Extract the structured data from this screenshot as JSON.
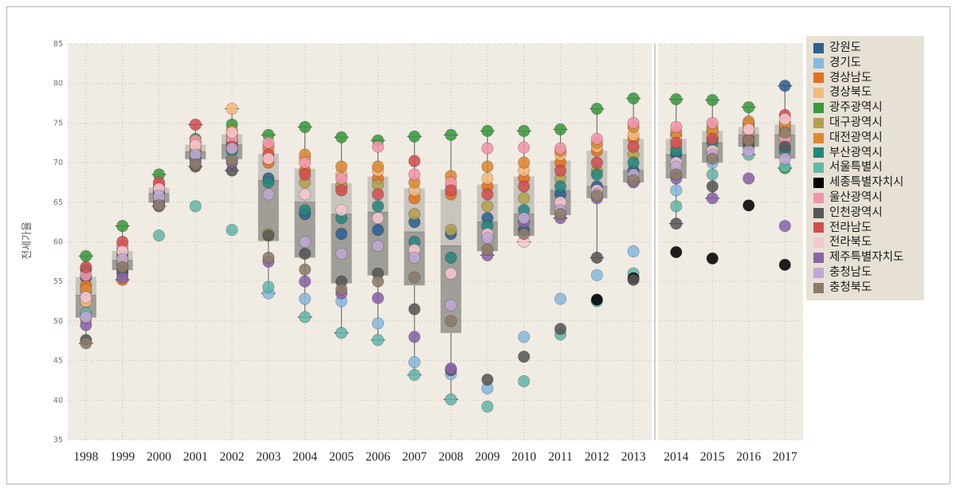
{
  "chart_data": {
    "type": "boxplot-scatter",
    "title": "",
    "ylabel": "전세가율",
    "ylim": [
      35,
      85
    ],
    "ytick_step": 5,
    "yticks": [
      35,
      40,
      45,
      50,
      55,
      60,
      65,
      70,
      75,
      80,
      85
    ],
    "years": [
      1998,
      1999,
      2000,
      2001,
      2002,
      2003,
      2004,
      2005,
      2006,
      2007,
      2008,
      2009,
      2010,
      2011,
      2012,
      2013,
      2014,
      2015,
      2016,
      2017
    ],
    "panel_split_after": 2013,
    "grid": true,
    "legend_position": "right",
    "colors": {
      "plot_background": "#f0ebe3",
      "legend_background": "#e7e1d5",
      "box_fill": "#a8a5a0",
      "box_fill_dark": "#807d79",
      "whisker": "#5f5f5f",
      "vgrid": "#a9bdd6",
      "hgrid": "#c6c1b6"
    },
    "regions": [
      {
        "name": "강원도",
        "color": "#2f5f8f",
        "values": [
          55.5,
          58.5,
          66.5,
          71.5,
          72.5,
          68.0,
          63.5,
          61.0,
          61.5,
          62.5,
          61.0,
          63.0,
          61.5,
          66.0,
          67.0,
          69.0,
          71.0,
          73.0,
          75.0,
          79.7
        ]
      },
      {
        "name": "경기도",
        "color": "#86b8dd",
        "values": [
          53.5,
          57.0,
          65.0,
          70.5,
          70.5,
          53.5,
          52.8,
          52.5,
          49.7,
          44.8,
          43.3,
          41.5,
          48.0,
          52.8,
          55.8,
          58.8,
          66.5,
          70.0,
          74.0,
          74.5
        ]
      },
      {
        "name": "경상남도",
        "color": "#e2711f",
        "values": [
          54.5,
          55.2,
          66.0,
          72.0,
          73.5,
          70.0,
          69.0,
          67.0,
          68.0,
          65.5,
          66.0,
          67.0,
          68.0,
          70.0,
          71.5,
          73.0,
          73.5,
          74.0,
          74.5,
          74.0
        ]
      },
      {
        "name": "경상북도",
        "color": "#f4b97d",
        "values": [
          52.5,
          56.5,
          65.5,
          71.8,
          76.8,
          71.5,
          70.5,
          68.5,
          69.0,
          66.5,
          67.0,
          68.0,
          69.0,
          71.0,
          72.0,
          73.5,
          73.0,
          73.5,
          73.8,
          73.5
        ]
      },
      {
        "name": "광주광역시",
        "color": "#3a9a3d",
        "values": [
          58.2,
          62.0,
          68.5,
          73.0,
          74.8,
          73.5,
          74.5,
          73.2,
          72.8,
          73.3,
          73.5,
          74.0,
          74.0,
          74.2,
          76.8,
          78.1,
          78.0,
          77.9,
          77.0,
          69.3
        ]
      },
      {
        "name": "대구광역시",
        "color": "#b3a04f",
        "values": [
          50.2,
          57.5,
          66.8,
          71.2,
          72.8,
          61.0,
          67.5,
          67.2,
          67.2,
          63.5,
          61.5,
          64.5,
          65.5,
          68.0,
          69.0,
          71.0,
          72.0,
          74.5,
          74.8,
          75.0
        ]
      },
      {
        "name": "대전광역시",
        "color": "#dd8833",
        "values": [
          54.0,
          58.0,
          67.0,
          72.5,
          74.0,
          72.0,
          71.0,
          69.5,
          69.5,
          67.5,
          68.3,
          69.5,
          70.0,
          71.5,
          72.5,
          74.5,
          73.8,
          74.0,
          75.2,
          74.8
        ]
      },
      {
        "name": "부산광역시",
        "color": "#27857c",
        "values": [
          56.5,
          59.0,
          66.2,
          70.8,
          71.5,
          67.5,
          64.0,
          63.0,
          64.5,
          60.0,
          58.0,
          62.0,
          64.0,
          67.0,
          68.5,
          70.0,
          71.5,
          72.5,
          72.0,
          71.5
        ]
      },
      {
        "name": "서울특별시",
        "color": "#66b5aa",
        "values": [
          51.0,
          56.0,
          60.8,
          64.5,
          61.5,
          54.3,
          50.5,
          48.5,
          47.6,
          43.2,
          40.1,
          39.2,
          42.4,
          48.3,
          52.5,
          56.0,
          64.5,
          68.5,
          71.0,
          69.5
        ]
      },
      {
        "name": "세종특별자치시",
        "color": "#000000",
        "values": [
          null,
          null,
          null,
          null,
          null,
          null,
          null,
          null,
          null,
          null,
          null,
          null,
          null,
          null,
          52.7,
          55.4,
          58.7,
          57.9,
          64.6,
          57.1
        ]
      },
      {
        "name": "울산광역시",
        "color": "#f195ab",
        "values": [
          55.8,
          59.5,
          67.2,
          72.8,
          73.0,
          72.5,
          70.0,
          68.0,
          72.0,
          68.5,
          67.5,
          71.8,
          71.9,
          71.8,
          73.0,
          75.0,
          74.5,
          75.0,
          73.5,
          73.0
        ]
      },
      {
        "name": "인천광역시",
        "color": "#575757",
        "values": [
          47.6,
          56.2,
          64.5,
          69.5,
          69.0,
          60.8,
          58.5,
          55.0,
          56.0,
          51.5,
          43.8,
          42.6,
          45.5,
          49.0,
          58.0,
          55.2,
          62.3,
          67.0,
          72.5,
          72.0
        ]
      },
      {
        "name": "전라남도",
        "color": "#d05050",
        "values": [
          56.8,
          60.0,
          67.5,
          74.8,
          72.0,
          71.0,
          68.5,
          66.5,
          66.0,
          70.2,
          66.5,
          66.0,
          67.0,
          69.0,
          70.0,
          72.0,
          72.5,
          73.0,
          73.0,
          76.0
        ]
      },
      {
        "name": "전라북도",
        "color": "#f5c6ce",
        "values": [
          53.0,
          58.8,
          66.7,
          72.2,
          73.8,
          70.5,
          66.0,
          64.0,
          63.0,
          59.0,
          56.0,
          61.0,
          60.0,
          65.0,
          66.5,
          68.0,
          70.0,
          71.5,
          74.2,
          75.5
        ]
      },
      {
        "name": "제주특별자치도",
        "color": "#8a63a8",
        "values": [
          49.5,
          55.5,
          64.8,
          70.2,
          70.0,
          57.5,
          55.0,
          53.5,
          52.9,
          48.0,
          44.0,
          58.3,
          62.5,
          63.0,
          65.5,
          67.5,
          68.0,
          65.5,
          68.0,
          62.0
        ]
      },
      {
        "name": "충청남도",
        "color": "#bfa8d3",
        "values": [
          50.5,
          57.8,
          65.8,
          71.0,
          71.8,
          66.0,
          60.0,
          58.5,
          59.5,
          58.0,
          52.0,
          60.5,
          63.0,
          64.0,
          66.0,
          68.5,
          69.5,
          71.0,
          71.5,
          70.5
        ]
      },
      {
        "name": "충청북도",
        "color": "#8c7b68",
        "values": [
          47.2,
          56.8,
          64.6,
          69.8,
          70.3,
          58.0,
          56.5,
          54.0,
          55.0,
          55.5,
          50.0,
          59.0,
          61.0,
          63.5,
          65.8,
          67.8,
          68.5,
          70.5,
          72.8,
          73.8
        ]
      }
    ]
  }
}
